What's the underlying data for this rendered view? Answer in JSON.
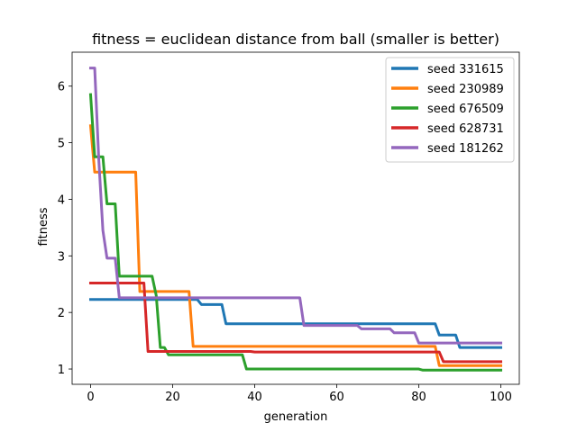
{
  "chart_data": {
    "type": "line",
    "title": "fitness = euclidean distance from ball (smaller is better)",
    "xlabel": "generation",
    "ylabel": "fitness",
    "xlim": [
      -4.5,
      104.5
    ],
    "ylim": [
      0.73,
      6.6
    ],
    "xticks": [
      0,
      20,
      40,
      60,
      80,
      100
    ],
    "yticks": [
      1,
      2,
      3,
      4,
      5,
      6
    ],
    "grid": false,
    "legend": "top-right",
    "series": [
      {
        "name": "seed 331615",
        "color": "#1f77b4",
        "x": [
          0,
          26,
          27,
          32,
          33,
          84,
          85,
          89,
          90,
          100
        ],
        "y": [
          2.23,
          2.23,
          2.14,
          2.14,
          1.8,
          1.8,
          1.6,
          1.6,
          1.38,
          1.38
        ]
      },
      {
        "name": "seed 230989",
        "color": "#ff7f0e",
        "x": [
          0,
          1,
          11,
          12,
          24,
          25,
          84,
          85,
          100
        ],
        "y": [
          5.3,
          4.48,
          4.48,
          2.37,
          2.37,
          1.4,
          1.4,
          1.06,
          1.06
        ]
      },
      {
        "name": "seed 676509",
        "color": "#2ca02c",
        "x": [
          0,
          1,
          3,
          4,
          6,
          7,
          15,
          16,
          17,
          18,
          19,
          37,
          38,
          80,
          81,
          100
        ],
        "y": [
          5.85,
          4.75,
          4.75,
          3.92,
          3.92,
          2.64,
          2.64,
          2.3,
          1.38,
          1.38,
          1.25,
          1.25,
          1.0,
          1.0,
          0.98,
          0.98
        ]
      },
      {
        "name": "seed 628731",
        "color": "#d62728",
        "x": [
          0,
          13,
          14,
          39,
          40,
          85,
          86,
          100
        ],
        "y": [
          2.52,
          2.52,
          1.31,
          1.31,
          1.3,
          1.3,
          1.13,
          1.13
        ]
      },
      {
        "name": "seed 181262",
        "color": "#9467bd",
        "x": [
          0,
          1,
          2,
          3,
          4,
          6,
          7,
          51,
          52,
          65,
          66,
          73,
          74,
          79,
          80,
          100
        ],
        "y": [
          6.32,
          6.32,
          4.7,
          3.45,
          2.96,
          2.96,
          2.26,
          2.26,
          1.77,
          1.77,
          1.71,
          1.71,
          1.64,
          1.64,
          1.46,
          1.46
        ]
      }
    ]
  }
}
